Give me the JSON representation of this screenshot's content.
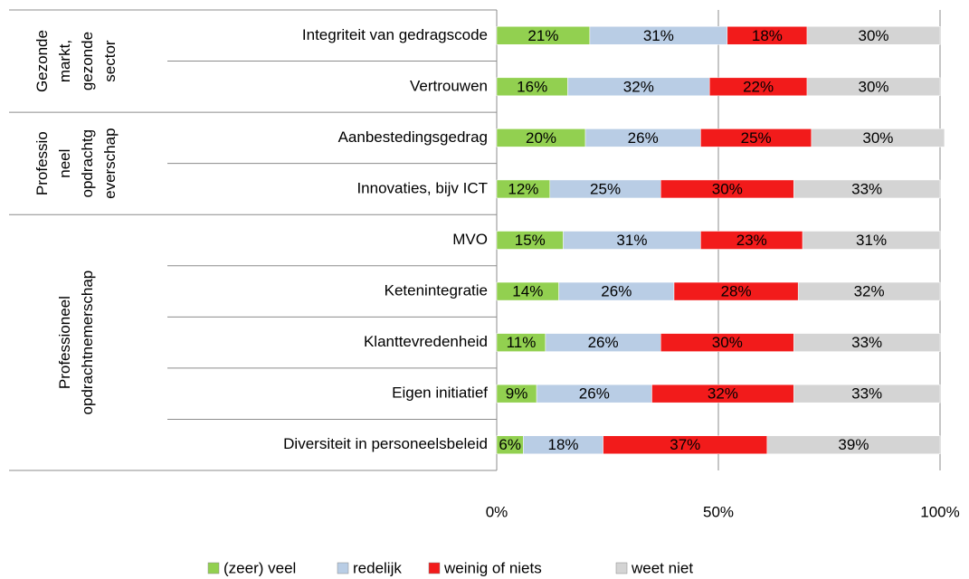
{
  "chart_data": {
    "type": "stacked_bar_horizontal",
    "categories": [
      "Integriteit van gedragscode",
      "Vertrouwen",
      "Aanbestedingsgedrag",
      "Innovaties, bijv ICT",
      "MVO",
      "Ketenintegratie",
      "Klanttevredenheid",
      "Eigen initiatief",
      "Diversiteit in personeelsbeleid"
    ],
    "groups": [
      {
        "lines": [
          "Gezonde",
          "markt,",
          "gezonde",
          "sector"
        ],
        "span": [
          0,
          1
        ]
      },
      {
        "lines": [
          "Professio",
          "neel",
          "opdrachtg",
          "everschap"
        ],
        "span": [
          2,
          3
        ]
      },
      {
        "lines": [
          "Professioneel",
          "opdrachtnemerschap"
        ],
        "span": [
          4,
          8
        ]
      }
    ],
    "series": [
      {
        "name": "(zeer) veel",
        "color": "#92d050",
        "values": [
          21,
          16,
          20,
          12,
          15,
          14,
          11,
          9,
          6
        ],
        "value_labels": [
          "21%",
          "16%",
          "20%",
          "12%",
          "15%",
          "14%",
          "11%",
          "9%",
          "6%"
        ]
      },
      {
        "name": "redelijk",
        "color": "#b9cde5",
        "values": [
          31,
          32,
          26,
          25,
          31,
          26,
          26,
          26,
          18
        ],
        "value_labels": [
          "31%",
          "32%",
          "26%",
          "25%",
          "31%",
          "26%",
          "26%",
          "26%",
          "18%"
        ]
      },
      {
        "name": "weinig of niets",
        "color": "#f21b1b",
        "values": [
          18,
          22,
          25,
          30,
          23,
          28,
          30,
          32,
          37
        ],
        "value_labels": [
          "18%",
          "22%",
          "25%",
          "30%",
          "23%",
          "28%",
          "30%",
          "32%",
          "37%"
        ]
      },
      {
        "name": "weet niet",
        "color": "#d4d4d4",
        "values": [
          30,
          30,
          30,
          33,
          31,
          32,
          33,
          33,
          39
        ],
        "value_labels": [
          "30%",
          "30%",
          "30%",
          "33%",
          "31%",
          "32%",
          "33%",
          "33%",
          "39%"
        ]
      }
    ],
    "xlim": [
      0,
      100
    ],
    "xticks": [
      {
        "value": 0,
        "label": "0%"
      },
      {
        "value": 50,
        "label": "50%"
      },
      {
        "value": 100,
        "label": "100%"
      }
    ],
    "grid": true,
    "legend": "bottom"
  }
}
